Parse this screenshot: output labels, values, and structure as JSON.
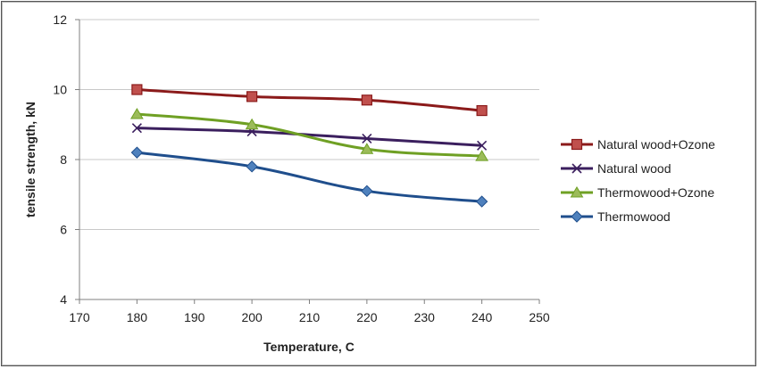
{
  "chart_data": {
    "type": "line",
    "xlabel": "Temperature, C",
    "ylabel": "tensile strength, kN",
    "xlim": [
      170,
      250
    ],
    "ylim": [
      4,
      12
    ],
    "xticks": [
      170,
      180,
      190,
      200,
      210,
      220,
      230,
      240,
      250
    ],
    "yticks": [
      4,
      6,
      8,
      10,
      12
    ],
    "grid": "horizontal",
    "legend": "right",
    "x": [
      180,
      200,
      220,
      240
    ],
    "series": [
      {
        "name": "Natural wood+Ozone",
        "values": [
          10.0,
          9.8,
          9.7,
          9.4
        ],
        "color": "#8b1a1a",
        "marker": "square"
      },
      {
        "name": "Natural wood",
        "values": [
          8.9,
          8.8,
          8.6,
          8.4
        ],
        "color": "#3b1f5e",
        "marker": "x"
      },
      {
        "name": "Thermowood+Ozone",
        "values": [
          9.3,
          9.0,
          8.3,
          8.1
        ],
        "color": "#6fa024",
        "marker": "triangle"
      },
      {
        "name": "Thermowood",
        "values": [
          8.2,
          7.8,
          7.1,
          6.8
        ],
        "color": "#1f4e8c",
        "marker": "diamond"
      }
    ]
  }
}
